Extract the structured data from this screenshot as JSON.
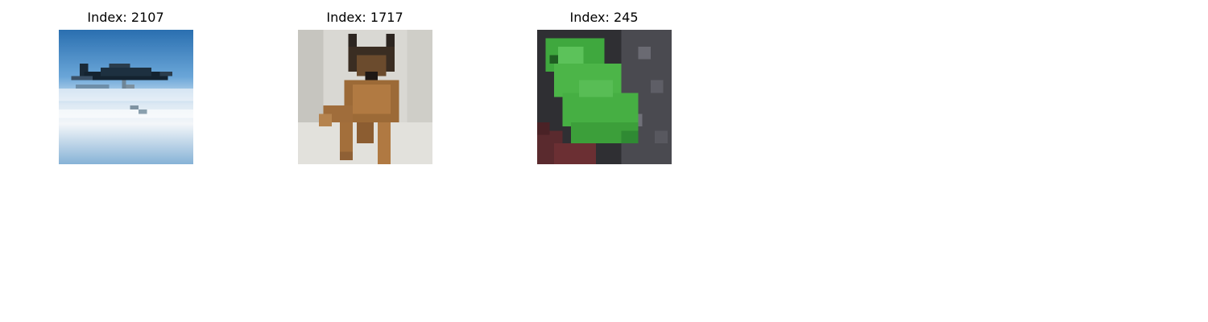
{
  "panels": [
    {
      "title": "Index: 2107",
      "subject": "airplane"
    },
    {
      "title": "Index: 1717",
      "subject": "dog"
    },
    {
      "title": "Index: 245",
      "subject": "frog"
    }
  ]
}
